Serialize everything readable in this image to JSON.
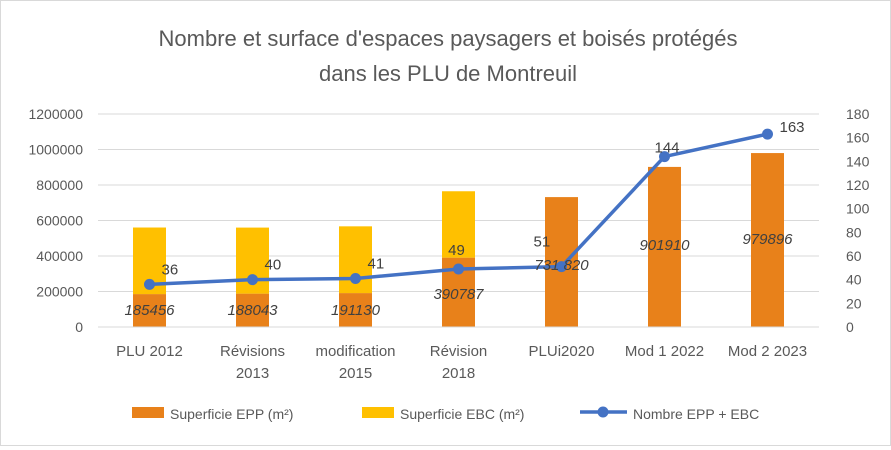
{
  "chart_data": {
    "type": "bar",
    "title_line1": "Nombre et surface d'espaces paysagers et boisés protégés",
    "title_line2": "dans les PLU de Montreuil",
    "categories": [
      [
        "PLU 2012"
      ],
      [
        "Révisions",
        "2013"
      ],
      [
        "modification",
        "2015"
      ],
      [
        "Révision",
        "2018"
      ],
      [
        "PLUi2020"
      ],
      [
        "Mod 1 2022"
      ],
      [
        "Mod 2 2023"
      ]
    ],
    "left_axis": {
      "ylim": [
        0,
        1200000
      ],
      "ticks": [
        "0",
        "200000",
        "400000",
        "600000",
        "800000",
        "1000000",
        "1200000"
      ]
    },
    "right_axis": {
      "ylim": [
        0,
        180
      ],
      "ticks": [
        "0",
        "20",
        "40",
        "60",
        "80",
        "100",
        "120",
        "140",
        "160",
        "180"
      ]
    },
    "series": [
      {
        "name": "Superficie EPP (m²)",
        "type": "bar",
        "axis": "left",
        "color": "#e8811a",
        "values": [
          185456,
          188043,
          191130,
          390787,
          731820,
          901910,
          979896
        ],
        "labels": [
          "185456",
          "188043",
          "191130",
          "390787",
          "731 820",
          "901910",
          "979896"
        ]
      },
      {
        "name": "Superficie EBC (m²)",
        "type": "bar",
        "axis": "left",
        "color": "#ffc000",
        "values": [
          375000,
          372000,
          376000,
          374000,
          0,
          0,
          0
        ]
      },
      {
        "name": "Nombre EPP + EBC",
        "type": "line",
        "axis": "right",
        "color": "#4472c4",
        "values": [
          36,
          40,
          41,
          49,
          51,
          144,
          163
        ],
        "labels": [
          "36",
          "40",
          "41",
          "49",
          "51",
          "144",
          "163"
        ]
      }
    ],
    "legend_position": "bottom",
    "grid": true
  }
}
